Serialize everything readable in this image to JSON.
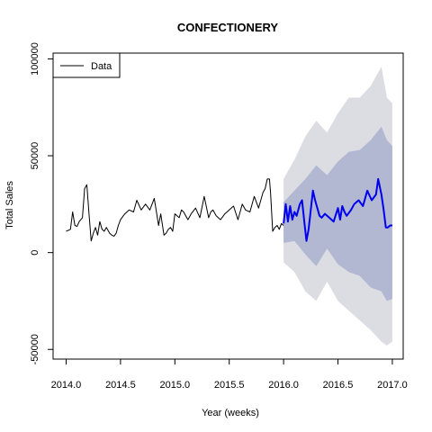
{
  "chart_data": {
    "type": "line",
    "title": "CONFECTIONERY",
    "xlabel": "Year (weeks)",
    "ylabel": "Total Sales",
    "xlim": [
      2014.0,
      2017.0
    ],
    "ylim": [
      -50000,
      100000
    ],
    "x_ticks": [
      "2014.0",
      "2014.5",
      "2015.0",
      "2015.5",
      "2016.0",
      "2016.5",
      "2017.0"
    ],
    "y_ticks": [
      "-50000",
      "0",
      "50000",
      "100000"
    ],
    "legend": {
      "position": "top-left",
      "entries": [
        "Data"
      ]
    },
    "colors": {
      "data": "#000000",
      "forecast": "#0000ee",
      "band80": "#b2b7d2",
      "band95": "#dcdce3"
    },
    "series": [
      {
        "name": "Data",
        "x": [
          2014.0,
          2014.02,
          2014.04,
          2014.06,
          2014.08,
          2014.1,
          2014.12,
          2014.15,
          2014.17,
          2014.19,
          2014.21,
          2014.23,
          2014.25,
          2014.27,
          2014.29,
          2014.31,
          2014.33,
          2014.35,
          2014.37,
          2014.4,
          2014.42,
          2014.44,
          2014.46,
          2014.48,
          2014.5,
          2014.54,
          2014.58,
          2014.62,
          2014.65,
          2014.69,
          2014.73,
          2014.77,
          2014.81,
          2014.85,
          2014.87,
          2014.9,
          2014.92,
          2014.94,
          2014.96,
          2014.98,
          2015.0,
          2015.04,
          2015.06,
          2015.08,
          2015.12,
          2015.15,
          2015.19,
          2015.23,
          2015.27,
          2015.31,
          2015.33,
          2015.35,
          2015.38,
          2015.42,
          2015.46,
          2015.5,
          2015.54,
          2015.58,
          2015.62,
          2015.65,
          2015.69,
          2015.73,
          2015.77,
          2015.81,
          2015.83,
          2015.85,
          2015.87,
          2015.88,
          2015.9,
          2015.92,
          2015.94,
          2015.96,
          2015.98,
          2016.0
        ],
        "y": [
          11000,
          11500,
          12000,
          21000,
          14000,
          13500,
          16000,
          18000,
          33000,
          35000,
          20000,
          6000,
          10000,
          13000,
          9000,
          16000,
          12000,
          11000,
          13000,
          10000,
          9000,
          8500,
          10000,
          14000,
          17000,
          20000,
          22000,
          21000,
          27000,
          22000,
          25000,
          22000,
          28000,
          14000,
          20000,
          9000,
          10000,
          12000,
          13000,
          11000,
          20000,
          18000,
          22000,
          21000,
          17000,
          20000,
          23000,
          18000,
          29000,
          18000,
          21000,
          22000,
          19000,
          17000,
          20000,
          22000,
          24000,
          17000,
          25000,
          22000,
          21000,
          29000,
          23000,
          31000,
          33000,
          38000,
          38000,
          31000,
          11000,
          13000,
          14000,
          12000,
          15000,
          14000
        ]
      },
      {
        "name": "",
        "x": [
          2016.0,
          2016.02,
          2016.04,
          2016.06,
          2016.08,
          2016.1,
          2016.12,
          2016.15,
          2016.17,
          2016.19,
          2016.21,
          2016.23,
          2016.25,
          2016.27,
          2016.29,
          2016.31,
          2016.33,
          2016.35,
          2016.38,
          2016.42,
          2016.46,
          2016.5,
          2016.52,
          2016.54,
          2016.56,
          2016.58,
          2016.62,
          2016.65,
          2016.69,
          2016.73,
          2016.77,
          2016.81,
          2016.85,
          2016.87,
          2016.9,
          2016.92,
          2016.94,
          2016.96,
          2016.98,
          2017.0
        ],
        "y": [
          15000,
          25000,
          16000,
          24000,
          17000,
          21000,
          19000,
          25000,
          27000,
          16000,
          6000,
          12000,
          22000,
          32000,
          27000,
          23000,
          19000,
          18000,
          20000,
          18000,
          16000,
          23000,
          17000,
          24000,
          21000,
          19000,
          22000,
          25000,
          27000,
          24000,
          32000,
          27000,
          30000,
          38000,
          30000,
          22000,
          13000,
          13000,
          14000,
          14000
        ]
      }
    ],
    "bands": {
      "x": [
        2016.0,
        2016.1,
        2016.2,
        2016.3,
        2016.4,
        2016.5,
        2016.6,
        2016.7,
        2016.8,
        2016.9,
        2016.95,
        2017.0
      ],
      "upper80": [
        26000,
        32000,
        38000,
        45000,
        40000,
        47000,
        52000,
        53000,
        58000,
        65000,
        58000,
        55000
      ],
      "lower80": [
        5000,
        6000,
        -1000,
        -7000,
        2000,
        -6000,
        -10000,
        -12000,
        -18000,
        -20000,
        -25000,
        -24000
      ],
      "upper95": [
        38000,
        48000,
        60000,
        68000,
        62000,
        72000,
        80000,
        80000,
        86000,
        96000,
        80000,
        77000
      ],
      "lower95": [
        -5000,
        -10000,
        -20000,
        -25000,
        -15000,
        -25000,
        -30000,
        -35000,
        -40000,
        -46000,
        -48000,
        -46000
      ]
    }
  }
}
